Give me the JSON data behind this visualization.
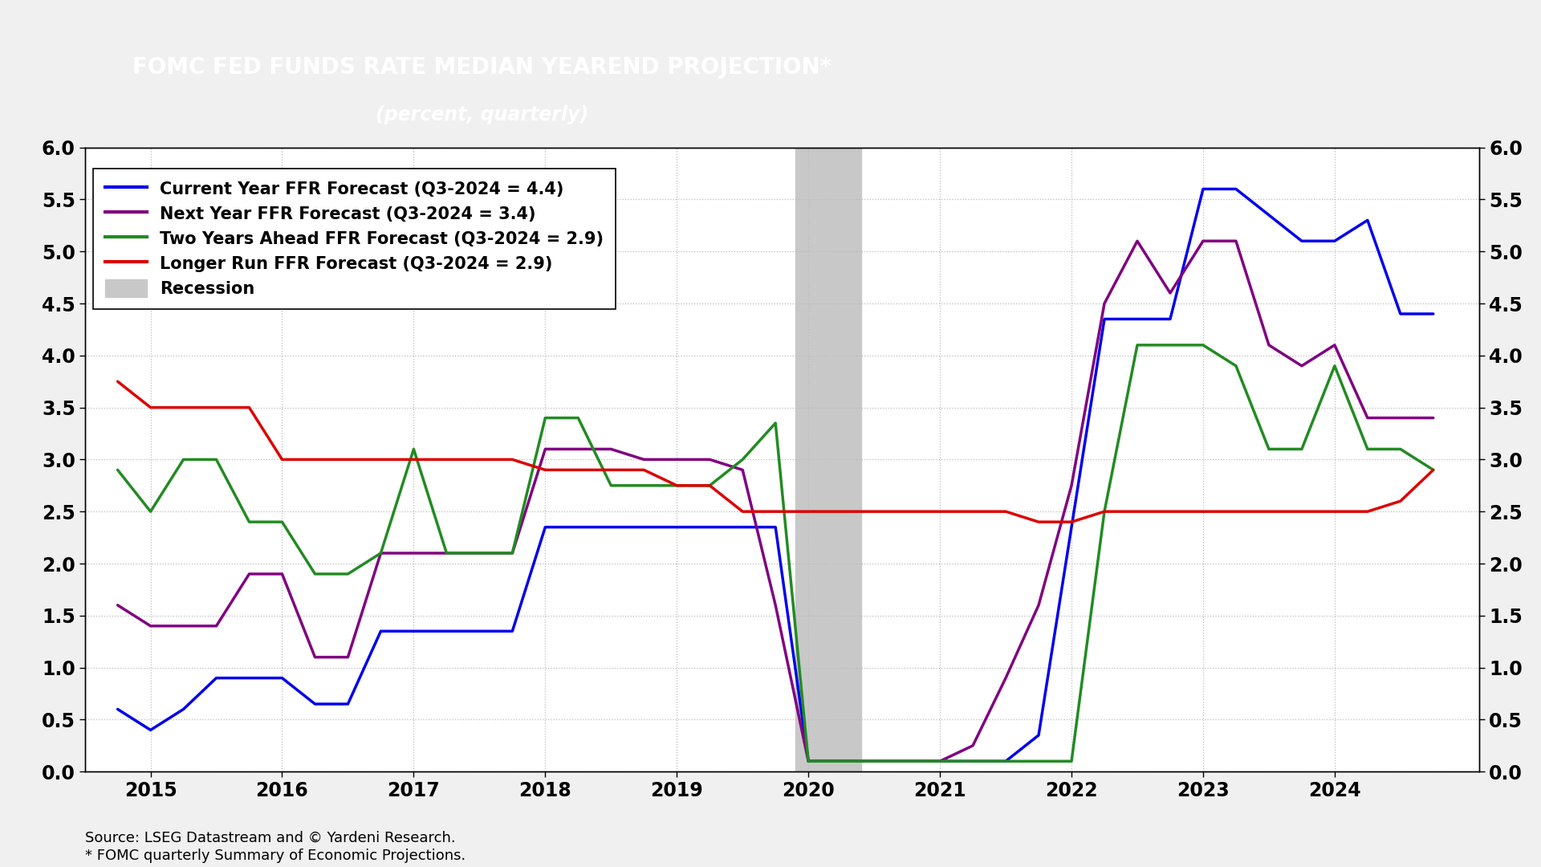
{
  "title_line1": "FOMC FED FUNDS RATE MEDIAN YEAREND PROJECTION*",
  "title_line2": "(percent, quarterly)",
  "title_bg_color": "#2E8B7A",
  "title_text_color": "#FFFFFF",
  "bg_color": "#F0F0F0",
  "plot_bg_color": "#FFFFFF",
  "grid_color": "#BBBBBB",
  "source_text": "Source: LSEG Datastream and © Yardeni Research.\n* FOMC quarterly Summary of Economic Projections.",
  "recession_start": 2019.9,
  "recession_end": 2020.4,
  "recession_color": "#C8C8C8",
  "ylim": [
    0.0,
    6.0
  ],
  "yticks": [
    0.0,
    0.5,
    1.0,
    1.5,
    2.0,
    2.5,
    3.0,
    3.5,
    4.0,
    4.5,
    5.0,
    5.5,
    6.0
  ],
  "xlim_left": 2014.5,
  "xlim_right": 2025.1,
  "xtick_labels": [
    "2015",
    "2016",
    "2017",
    "2018",
    "2019",
    "2020",
    "2021",
    "2022",
    "2023",
    "2024"
  ],
  "xtick_positions": [
    2015,
    2016,
    2017,
    2018,
    2019,
    2020,
    2021,
    2022,
    2023,
    2024
  ],
  "lines": {
    "current_year": {
      "label": "Current Year FFR Forecast (Q3-2024 = 4.4)",
      "color": "#0000EE",
      "linewidth": 2.5,
      "x": [
        2014.75,
        2015.0,
        2015.25,
        2015.5,
        2015.75,
        2016.0,
        2016.25,
        2016.5,
        2016.75,
        2017.0,
        2017.25,
        2017.5,
        2017.75,
        2018.0,
        2018.25,
        2018.5,
        2018.75,
        2019.0,
        2019.25,
        2019.5,
        2019.75,
        2020.0,
        2020.25,
        2020.5,
        2020.75,
        2021.0,
        2021.25,
        2021.5,
        2021.75,
        2022.0,
        2022.25,
        2022.5,
        2022.75,
        2023.0,
        2023.25,
        2023.5,
        2023.75,
        2024.0,
        2024.25,
        2024.5,
        2024.75
      ],
      "y": [
        0.6,
        0.4,
        0.6,
        0.9,
        0.9,
        0.9,
        0.65,
        0.65,
        1.35,
        1.35,
        1.35,
        1.35,
        1.35,
        2.35,
        2.35,
        2.35,
        2.35,
        2.35,
        2.35,
        2.35,
        2.35,
        0.1,
        0.1,
        0.1,
        0.1,
        0.1,
        0.1,
        0.1,
        0.35,
        2.35,
        4.35,
        4.35,
        4.35,
        5.6,
        5.6,
        5.35,
        5.1,
        5.1,
        5.3,
        4.4,
        4.4
      ]
    },
    "next_year": {
      "label": "Next Year FFR Forecast (Q3-2024 = 3.4)",
      "color": "#800080",
      "linewidth": 2.5,
      "x": [
        2014.75,
        2015.0,
        2015.25,
        2015.5,
        2015.75,
        2016.0,
        2016.25,
        2016.5,
        2016.75,
        2017.0,
        2017.25,
        2017.5,
        2017.75,
        2018.0,
        2018.25,
        2018.5,
        2018.75,
        2019.0,
        2019.25,
        2019.5,
        2019.75,
        2020.0,
        2020.25,
        2020.5,
        2020.75,
        2021.0,
        2021.25,
        2021.5,
        2021.75,
        2022.0,
        2022.25,
        2022.5,
        2022.75,
        2023.0,
        2023.25,
        2023.5,
        2023.75,
        2024.0,
        2024.25,
        2024.5,
        2024.75
      ],
      "y": [
        1.6,
        1.4,
        1.4,
        1.4,
        1.9,
        1.9,
        1.1,
        1.1,
        2.1,
        2.1,
        2.1,
        2.1,
        2.1,
        3.1,
        3.1,
        3.1,
        3.0,
        3.0,
        3.0,
        2.9,
        1.6,
        0.1,
        0.1,
        0.1,
        0.1,
        0.1,
        0.25,
        0.9,
        1.6,
        2.75,
        4.5,
        5.1,
        4.6,
        5.1,
        5.1,
        4.1,
        3.9,
        4.1,
        3.4,
        3.4,
        3.4
      ]
    },
    "two_years": {
      "label": "Two Years Ahead FFR Forecast (Q3-2024 = 2.9)",
      "color": "#228B22",
      "linewidth": 2.5,
      "x": [
        2014.75,
        2015.0,
        2015.25,
        2015.5,
        2015.75,
        2016.0,
        2016.25,
        2016.5,
        2016.75,
        2017.0,
        2017.25,
        2017.5,
        2017.75,
        2018.0,
        2018.25,
        2018.5,
        2018.75,
        2019.0,
        2019.25,
        2019.5,
        2019.75,
        2020.0,
        2020.25,
        2020.5,
        2020.75,
        2021.0,
        2021.25,
        2021.5,
        2021.75,
        2022.0,
        2022.25,
        2022.5,
        2022.75,
        2023.0,
        2023.25,
        2023.5,
        2023.75,
        2024.0,
        2024.25,
        2024.5,
        2024.75
      ],
      "y": [
        2.9,
        2.5,
        3.0,
        3.0,
        2.4,
        2.4,
        1.9,
        1.9,
        2.1,
        3.1,
        2.1,
        2.1,
        2.1,
        3.4,
        3.4,
        2.75,
        2.75,
        2.75,
        2.75,
        3.0,
        3.35,
        0.1,
        0.1,
        0.1,
        0.1,
        0.1,
        0.1,
        0.1,
        0.1,
        0.1,
        2.5,
        4.1,
        4.1,
        4.1,
        3.9,
        3.1,
        3.1,
        3.9,
        3.1,
        3.1,
        2.9
      ]
    },
    "longer_run": {
      "label": "Longer Run FFR Forecast (Q3-2024 = 2.9)",
      "color": "#DD0000",
      "linewidth": 2.5,
      "x": [
        2014.75,
        2015.0,
        2015.25,
        2015.5,
        2015.75,
        2016.0,
        2016.25,
        2016.5,
        2016.75,
        2017.0,
        2017.25,
        2017.5,
        2017.75,
        2018.0,
        2018.25,
        2018.5,
        2018.75,
        2019.0,
        2019.25,
        2019.5,
        2019.75,
        2020.0,
        2020.25,
        2020.5,
        2020.75,
        2021.0,
        2021.25,
        2021.5,
        2021.75,
        2022.0,
        2022.25,
        2022.5,
        2022.75,
        2023.0,
        2023.25,
        2023.5,
        2023.75,
        2024.0,
        2024.25,
        2024.5,
        2024.75
      ],
      "y": [
        3.75,
        3.5,
        3.5,
        3.5,
        3.5,
        3.0,
        3.0,
        3.0,
        3.0,
        3.0,
        3.0,
        3.0,
        3.0,
        2.9,
        2.9,
        2.9,
        2.9,
        2.75,
        2.75,
        2.5,
        2.5,
        2.5,
        2.5,
        2.5,
        2.5,
        2.5,
        2.5,
        2.5,
        2.4,
        2.4,
        2.5,
        2.5,
        2.5,
        2.5,
        2.5,
        2.5,
        2.5,
        2.5,
        2.5,
        2.6,
        2.9
      ]
    }
  },
  "legend_labels": [
    "Current Year FFR Forecast (Q3-2024 = 4.4)",
    "Next Year FFR Forecast (Q3-2024 = 3.4)",
    "Two Years Ahead FFR Forecast (Q3-2024 = 2.9)",
    "Longer Run FFR Forecast (Q3-2024 = 2.9)",
    "Recession"
  ],
  "legend_colors": [
    "#0000EE",
    "#800080",
    "#228B22",
    "#DD0000",
    "#C8C8C8"
  ]
}
